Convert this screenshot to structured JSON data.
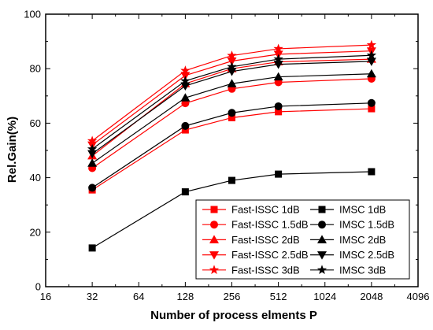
{
  "chart_data": {
    "type": "line",
    "title": "",
    "xlabel": "Number of process elments P",
    "ylabel": "Rel.Gain(%)",
    "xscale": "log2",
    "xlim": [
      16,
      4096
    ],
    "ylim": [
      0,
      100
    ],
    "x_ticks": [
      "16",
      "32",
      "64",
      "128",
      "256",
      "512",
      "1024",
      "2048",
      "4096"
    ],
    "y_ticks": [
      "0",
      "20",
      "40",
      "60",
      "80",
      "100"
    ],
    "x": [
      32,
      128,
      256,
      512,
      2048
    ],
    "grid": false,
    "legend_position": "bottom-right",
    "series": [
      {
        "name": "Fast-ISSC 1dB",
        "values": [
          35.5,
          57.5,
          62.0,
          64.2,
          65.3
        ],
        "color": "#ff0000",
        "marker": "square"
      },
      {
        "name": "IMSC 1dB",
        "values": [
          14.2,
          34.8,
          39.0,
          41.3,
          42.2
        ],
        "color": "#000000",
        "marker": "square"
      },
      {
        "name": "Fast-ISSC 1.5dB",
        "values": [
          43.5,
          67.3,
          72.6,
          75.0,
          76.3
        ],
        "color": "#ff0000",
        "marker": "circle"
      },
      {
        "name": "IMSC 1.5dB",
        "values": [
          36.3,
          59.0,
          63.8,
          66.2,
          67.4
        ],
        "color": "#000000",
        "marker": "circle"
      },
      {
        "name": "Fast-ISSC 2dB",
        "values": [
          48.0,
          74.5,
          80.0,
          82.5,
          83.5
        ],
        "color": "#ff0000",
        "marker": "triangle-up"
      },
      {
        "name": "IMSC 2dB",
        "values": [
          45.3,
          69.3,
          74.5,
          77.0,
          78.1
        ],
        "color": "#000000",
        "marker": "triangle-up"
      },
      {
        "name": "Fast-ISSC 2.5dB",
        "values": [
          52.0,
          77.5,
          82.8,
          85.3,
          86.5
        ],
        "color": "#ff0000",
        "marker": "triangle-down"
      },
      {
        "name": "IMSC 2.5dB",
        "values": [
          48.8,
          73.7,
          79.0,
          81.6,
          82.7
        ],
        "color": "#000000",
        "marker": "triangle-down"
      },
      {
        "name": "Fast-ISSC 3dB",
        "values": [
          53.5,
          79.3,
          84.8,
          87.3,
          88.7
        ],
        "color": "#ff0000",
        "marker": "star"
      },
      {
        "name": "IMSC 3dB",
        "values": [
          50.5,
          75.5,
          80.7,
          83.5,
          84.9
        ],
        "color": "#000000",
        "marker": "star"
      }
    ]
  }
}
